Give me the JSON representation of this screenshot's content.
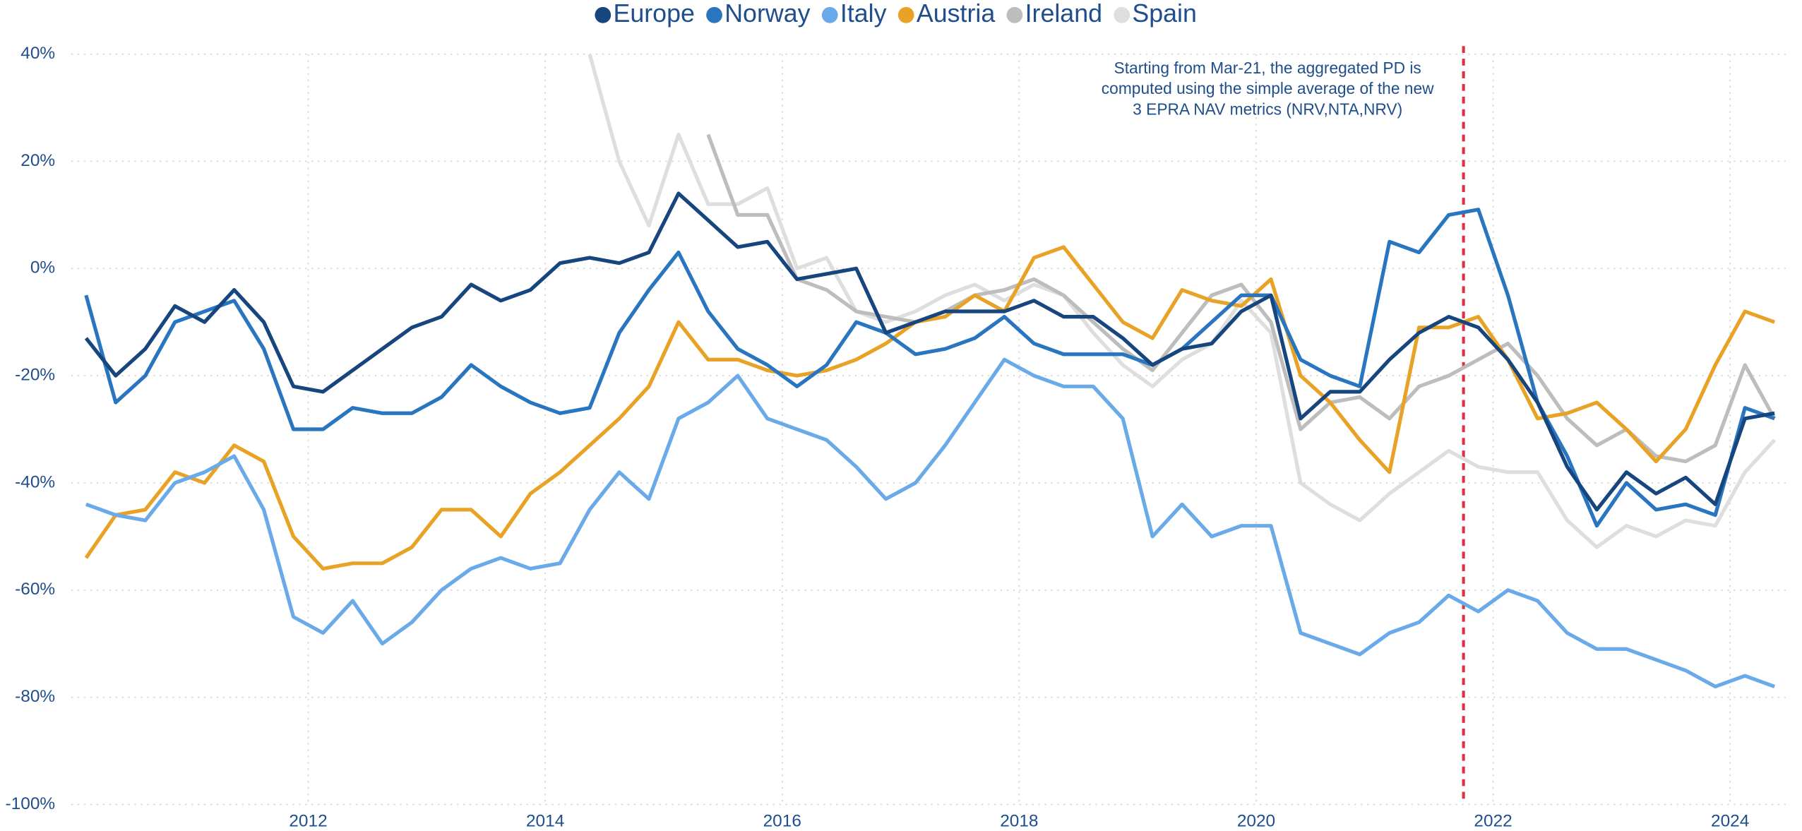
{
  "chart_data": {
    "type": "line",
    "legend": "top",
    "grid": true,
    "x": [
      2010.125,
      2010.375,
      2010.625,
      2010.875,
      2011.125,
      2011.375,
      2011.625,
      2011.875,
      2012.125,
      2012.375,
      2012.625,
      2012.875,
      2013.125,
      2013.375,
      2013.625,
      2013.875,
      2014.125,
      2014.375,
      2014.625,
      2014.875,
      2015.125,
      2015.375,
      2015.625,
      2015.875,
      2016.125,
      2016.375,
      2016.625,
      2016.875,
      2017.125,
      2017.375,
      2017.625,
      2017.875,
      2018.125,
      2018.375,
      2018.625,
      2018.875,
      2019.125,
      2019.375,
      2019.625,
      2019.875,
      2020.125,
      2020.375,
      2020.625,
      2020.875,
      2021.125,
      2021.375,
      2021.625,
      2021.875,
      2022.125,
      2022.375,
      2022.625,
      2022.875,
      2023.125,
      2023.375,
      2023.625,
      2023.875,
      2024.125,
      2024.375
    ],
    "xlim": [
      2010,
      2024.5
    ],
    "xticks": [
      2012,
      2014,
      2016,
      2018,
      2020,
      2022,
      2024
    ],
    "ylim": [
      -100,
      40
    ],
    "yticks": [
      {
        "value": -100,
        "label": "-100%"
      },
      {
        "value": -80,
        "label": "-80%"
      },
      {
        "value": -60,
        "label": "-60%"
      },
      {
        "value": -40,
        "label": "-40%"
      },
      {
        "value": -20,
        "label": "-20%"
      },
      {
        "value": 0,
        "label": "0%"
      },
      {
        "value": 20,
        "label": "20%"
      },
      {
        "value": 40,
        "label": "40%"
      }
    ],
    "annotation": {
      "x": 2021.75,
      "color": "#e03040",
      "text": [
        "Starting from Mar-21, the aggregated PD is",
        "computed using the simple average of the new",
        "3 EPRA NAV metrics (NRV,NTA,NRV)"
      ]
    },
    "series": [
      {
        "name": "Europe",
        "color": "#17467e",
        "values": [
          -13,
          -20,
          -15,
          -7,
          -10,
          -4,
          -10,
          -22,
          -23,
          -19,
          -15,
          -11,
          -9,
          -3,
          -6,
          -4,
          1,
          2,
          1,
          3,
          14,
          9,
          4,
          5,
          -2,
          -1,
          0,
          -12,
          -10,
          -8,
          -8,
          -8,
          -6,
          -9,
          -9,
          -13,
          -18,
          -15,
          -14,
          -8,
          -5,
          -28,
          -23,
          -23,
          -17,
          -12,
          -9,
          -11,
          -17,
          -25,
          -37,
          -45,
          -38,
          -42,
          -39,
          -44,
          -28,
          -27
        ]
      },
      {
        "name": "Norway",
        "color": "#2a75c0",
        "values": [
          -5,
          -25,
          -20,
          -10,
          -8,
          -6,
          -15,
          -30,
          -30,
          -26,
          -27,
          -27,
          -24,
          -18,
          -22,
          -25,
          -27,
          -26,
          -12,
          -4,
          3,
          -8,
          -15,
          -18,
          -22,
          -18,
          -10,
          -12,
          -16,
          -15,
          -13,
          -9,
          -14,
          -16,
          -16,
          -16,
          -18,
          -15,
          -10,
          -5,
          -5,
          -17,
          -20,
          -22,
          5,
          3,
          10,
          11,
          -5,
          -25,
          -35,
          -48,
          -40,
          -45,
          -44,
          -46,
          -26,
          -28
        ]
      },
      {
        "name": "Italy",
        "color": "#6aaae8",
        "values": [
          -44,
          -46,
          -47,
          -40,
          -38,
          -35,
          -45,
          -65,
          -68,
          -62,
          -70,
          -66,
          -60,
          -56,
          -54,
          -56,
          -55,
          -45,
          -38,
          -43,
          -28,
          -25,
          -20,
          -28,
          -30,
          -32,
          -37,
          -43,
          -40,
          -33,
          -25,
          -17,
          -20,
          -22,
          -22,
          -28,
          -50,
          -44,
          -50,
          -48,
          -48,
          -68,
          -70,
          -72,
          -68,
          -66,
          -61,
          -64,
          -60,
          -62,
          -68,
          -71,
          -71,
          -73,
          -75,
          -78,
          -76,
          -78
        ]
      },
      {
        "name": "Austria",
        "color": "#e8a326",
        "values": [
          -54,
          -46,
          -45,
          -38,
          -40,
          -33,
          -36,
          -50,
          -56,
          -55,
          -55,
          -52,
          -45,
          -45,
          -50,
          -42,
          -38,
          -33,
          -28,
          -22,
          -10,
          -17,
          -17,
          -19,
          -20,
          -19,
          -17,
          -14,
          -10,
          -9,
          -5,
          -8,
          2,
          4,
          -3,
          -10,
          -13,
          -4,
          -6,
          -7,
          -2,
          -20,
          -25,
          -32,
          -38,
          -11,
          -11,
          -9,
          -17,
          -28,
          -27,
          -25,
          -30,
          -36,
          -30,
          -18,
          -8,
          -10
        ]
      },
      {
        "name": "Ireland",
        "color": "#bdbdbd",
        "values": [
          null,
          null,
          null,
          null,
          null,
          null,
          null,
          null,
          null,
          null,
          null,
          null,
          null,
          null,
          null,
          null,
          null,
          null,
          null,
          null,
          null,
          25,
          10,
          10,
          -2,
          -4,
          -8,
          -9,
          -10,
          -8,
          -5,
          -4,
          -2,
          -5,
          -10,
          -15,
          -19,
          -12,
          -5,
          -3,
          -10,
          -30,
          -25,
          -24,
          -28,
          -22,
          -20,
          -17,
          -14,
          -20,
          -28,
          -33,
          -30,
          -35,
          -36,
          -33,
          -18,
          -28
        ]
      },
      {
        "name": "Spain",
        "color": "#dedede",
        "values": [
          null,
          null,
          null,
          null,
          null,
          null,
          null,
          null,
          null,
          null,
          null,
          null,
          null,
          null,
          null,
          null,
          null,
          40,
          20,
          8,
          25,
          12,
          12,
          15,
          0,
          2,
          -8,
          -10,
          -8,
          -5,
          -3,
          -6,
          -3,
          -5,
          -12,
          -18,
          -22,
          -17,
          -14,
          -6,
          -12,
          -40,
          -44,
          -47,
          -42,
          -38,
          -34,
          -37,
          -38,
          -38,
          -47,
          -52,
          -48,
          -50,
          -47,
          -48,
          -38,
          -32
        ]
      }
    ]
  }
}
